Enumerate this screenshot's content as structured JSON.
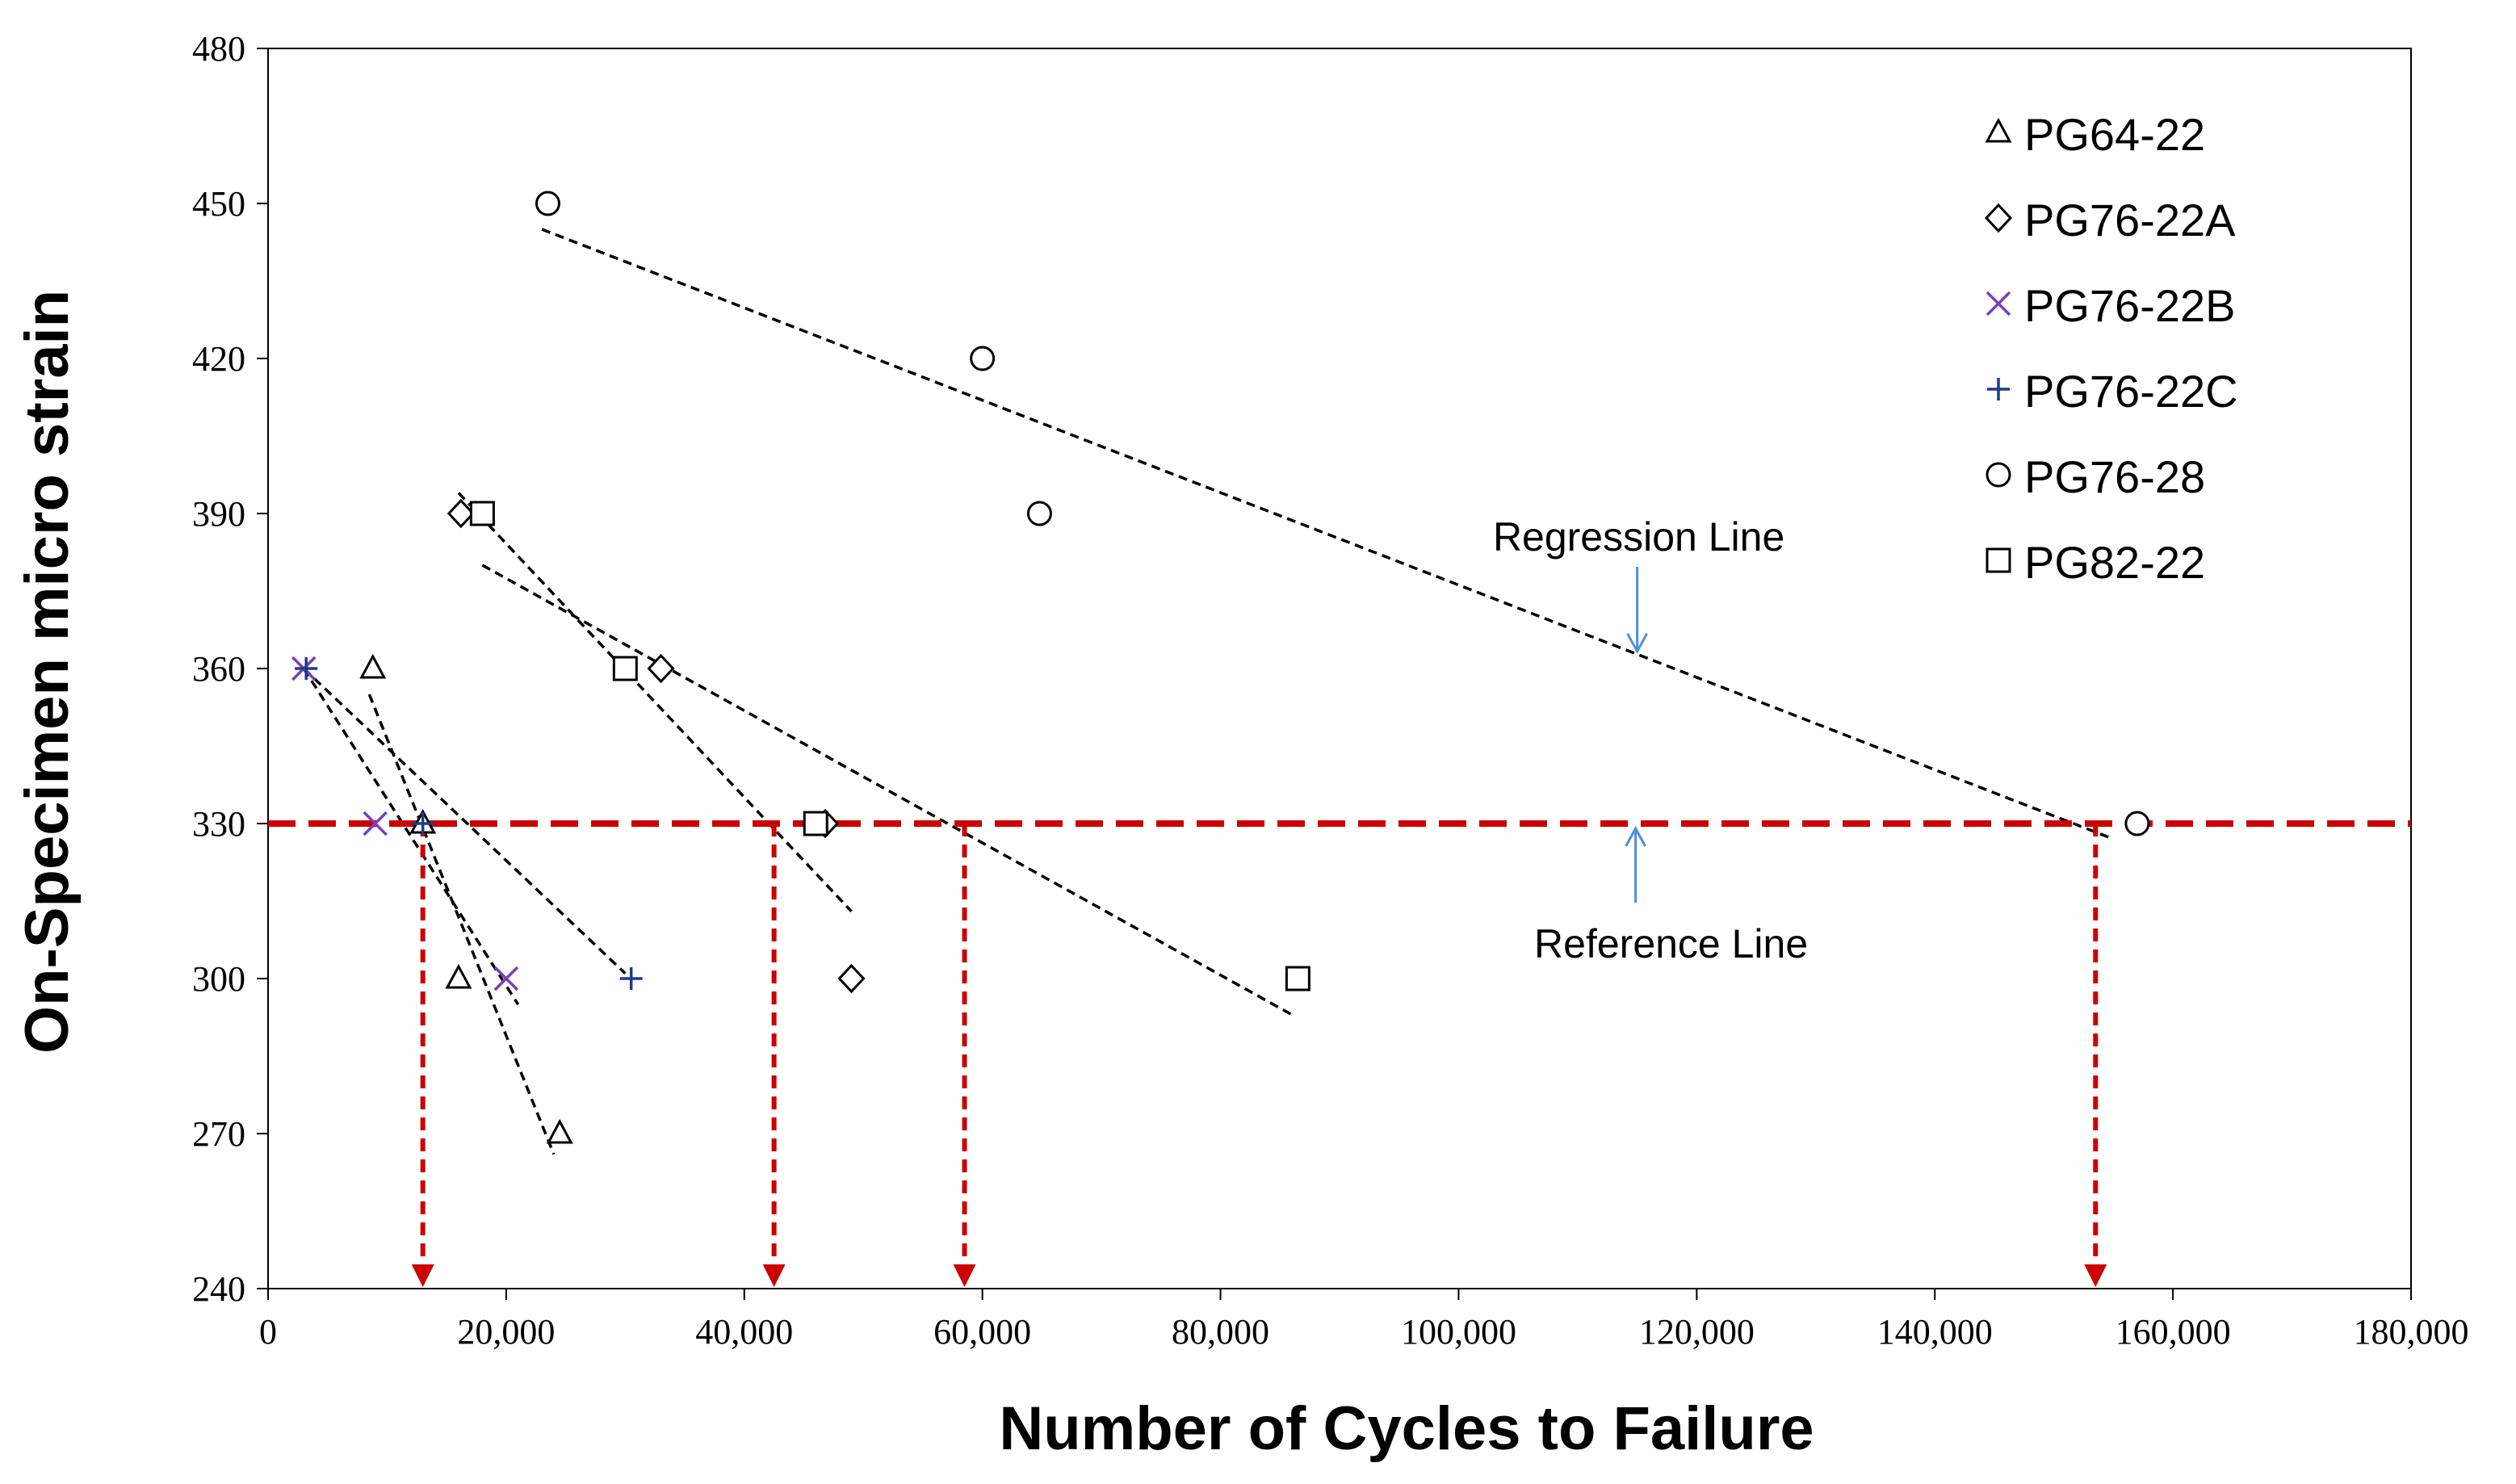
{
  "chart_data": {
    "type": "scatter",
    "title": "",
    "xlabel": "Number of Cycles to Failure",
    "ylabel": "On-Specimen micro strain",
    "xlim": [
      0,
      180000
    ],
    "ylim": [
      240,
      480
    ],
    "x_ticks": [
      0,
      20000,
      40000,
      60000,
      80000,
      100000,
      120000,
      140000,
      160000,
      180000
    ],
    "x_tick_labels": [
      "0",
      "20,000",
      "40,000",
      "60,000",
      "80,000",
      "100,000",
      "120,000",
      "140,000",
      "160,000",
      "180,000"
    ],
    "y_ticks": [
      240,
      270,
      300,
      330,
      360,
      390,
      420,
      450,
      480
    ],
    "y_tick_labels": [
      "240",
      "270",
      "300",
      "330",
      "360",
      "390",
      "420",
      "450",
      "480"
    ],
    "grid": false,
    "legend_position": "top-right",
    "series": [
      {
        "name": "PG64-22",
        "marker": "triangle",
        "color": "#000000",
        "points": [
          [
            8800,
            360
          ],
          [
            13000,
            330
          ],
          [
            16000,
            300
          ],
          [
            24500,
            270
          ]
        ],
        "regression": [
          [
            8500,
            355
          ],
          [
            24000,
            266
          ]
        ]
      },
      {
        "name": "PG76-22A",
        "marker": "diamond",
        "color": "#000000",
        "points": [
          [
            16200,
            390
          ],
          [
            33000,
            360
          ],
          [
            46800,
            330
          ],
          [
            49000,
            300
          ]
        ],
        "regression": [
          [
            16000,
            394
          ],
          [
            49000,
            313
          ]
        ]
      },
      {
        "name": "PG76-22B",
        "marker": "x",
        "color": "#7b3fb5",
        "points": [
          [
            3000,
            360
          ],
          [
            9000,
            330
          ],
          [
            20000,
            300
          ]
        ],
        "regression": [
          [
            3000,
            360
          ],
          [
            21000,
            295
          ]
        ]
      },
      {
        "name": "PG76-22C",
        "marker": "plus",
        "color": "#1f3a8a",
        "points": [
          [
            3200,
            360
          ],
          [
            13000,
            330
          ],
          [
            30500,
            300
          ]
        ],
        "regression": [
          [
            3000,
            360
          ],
          [
            30000,
            301
          ]
        ]
      },
      {
        "name": "PG76-28",
        "marker": "circle",
        "color": "#000000",
        "points": [
          [
            23500,
            450
          ],
          [
            60000,
            420
          ],
          [
            64800,
            390
          ],
          [
            157000,
            330
          ]
        ],
        "regression": [
          [
            23000,
            445
          ],
          [
            155000,
            327
          ]
        ]
      },
      {
        "name": "PG82-22",
        "marker": "square",
        "color": "#000000",
        "points": [
          [
            18000,
            390
          ],
          [
            30000,
            360
          ],
          [
            46000,
            330
          ],
          [
            86500,
            300
          ]
        ],
        "regression": [
          [
            18000,
            380
          ],
          [
            86000,
            293
          ]
        ]
      }
    ],
    "reference_line": {
      "y": 330,
      "label": "Reference Line",
      "color": "#cc0000"
    },
    "drop_arrows_x": [
      13000,
      42500,
      58500,
      153500
    ],
    "annotations": [
      {
        "text": "Regression Line",
        "at_x": 115000,
        "arrow_to_y": 363
      },
      {
        "text": "Reference Line",
        "at_x": 115000,
        "arrow_to_y": 330
      }
    ]
  },
  "colors": {
    "reference": "#cc0000",
    "annotation_arrow": "#4a90d9",
    "pg76_22b": "#7b3fb5",
    "pg76_22c": "#1f3a8a"
  }
}
